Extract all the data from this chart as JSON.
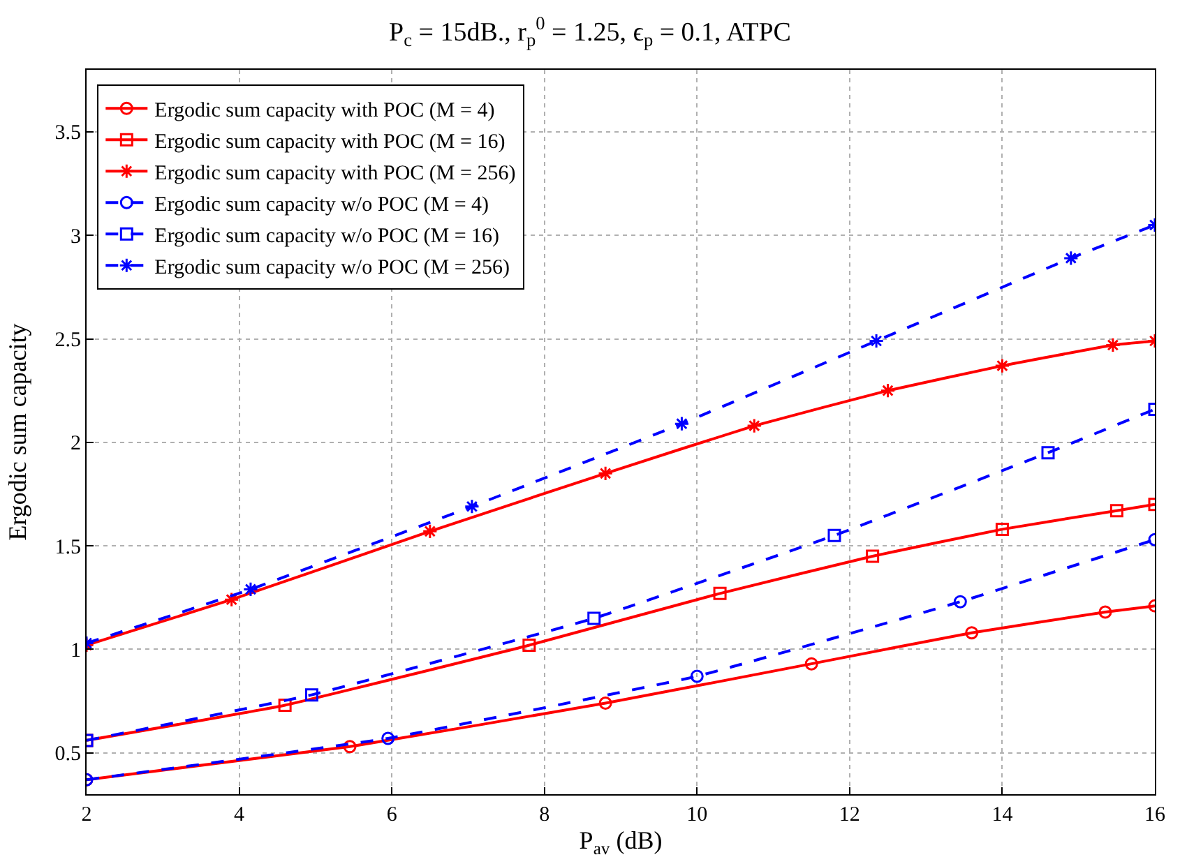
{
  "chart_data": {
    "type": "line",
    "title": "P$_{c}$ = 15dB., r$_{p}$$^{0}$ = 1.25, ϵ$_{p}$ = 0.1, ATPC",
    "xlabel": "P$_{av}$ (dB)",
    "ylabel": "Ergodic sum capacity",
    "xlim": [
      2,
      16
    ],
    "xticks": [
      2,
      4,
      6,
      8,
      10,
      12,
      14,
      16
    ],
    "ylim": [
      0.3,
      3.8
    ],
    "yticks": [
      0.5,
      1,
      1.5,
      2,
      2.5,
      3,
      3.5
    ],
    "grid": true,
    "legend": "top left",
    "series": [
      {
        "name": "Ergodic sum capacity with POC (M = 4)",
        "color": "#ff0000",
        "marker": "circle",
        "line_style": "solid",
        "x": [
          2,
          5.45,
          8.8,
          11.5,
          13.6,
          15.35,
          16
        ],
        "values": [
          0.37,
          0.53,
          0.74,
          0.93,
          1.08,
          1.18,
          1.21
        ]
      },
      {
        "name": "Ergodic sum capacity with POC (M = 16)",
        "color": "#ff0000",
        "marker": "square",
        "line_style": "solid",
        "x": [
          2,
          4.6,
          7.8,
          10.3,
          12.3,
          14,
          15.5,
          16
        ],
        "values": [
          0.56,
          0.73,
          1.02,
          1.27,
          1.45,
          1.58,
          1.67,
          1.7
        ]
      },
      {
        "name": "Ergodic sum capacity with POC (M = 256)",
        "color": "#ff0000",
        "marker": "cross",
        "line_style": "solid",
        "x": [
          2,
          3.9,
          6.5,
          8.8,
          10.75,
          12.5,
          14,
          15.45,
          16
        ],
        "values": [
          1.02,
          1.24,
          1.57,
          1.85,
          2.08,
          2.25,
          2.37,
          2.47,
          2.49
        ]
      },
      {
        "name": "Ergodic sum capacity w/o POC (M = 4)",
        "color": "#0000ff",
        "marker": "circle",
        "line_style": "dashed",
        "x": [
          2,
          5.95,
          10,
          13.45,
          16
        ],
        "values": [
          0.37,
          0.57,
          0.87,
          1.23,
          1.53
        ]
      },
      {
        "name": "Ergodic sum capacity w/o POC (M = 16)",
        "color": "#0000ff",
        "marker": "square",
        "line_style": "dashed",
        "x": [
          2,
          4.95,
          8.65,
          11.8,
          14.6,
          16
        ],
        "values": [
          0.56,
          0.78,
          1.15,
          1.55,
          1.95,
          2.16
        ]
      },
      {
        "name": "Ergodic sum capacity w/o POC (M = 256)",
        "color": "#0000ff",
        "marker": "cross",
        "line_style": "dashed",
        "x": [
          2,
          4.15,
          7.05,
          9.8,
          12.35,
          14.9,
          16
        ],
        "values": [
          1.03,
          1.29,
          1.69,
          2.09,
          2.49,
          2.89,
          3.05
        ]
      }
    ]
  }
}
